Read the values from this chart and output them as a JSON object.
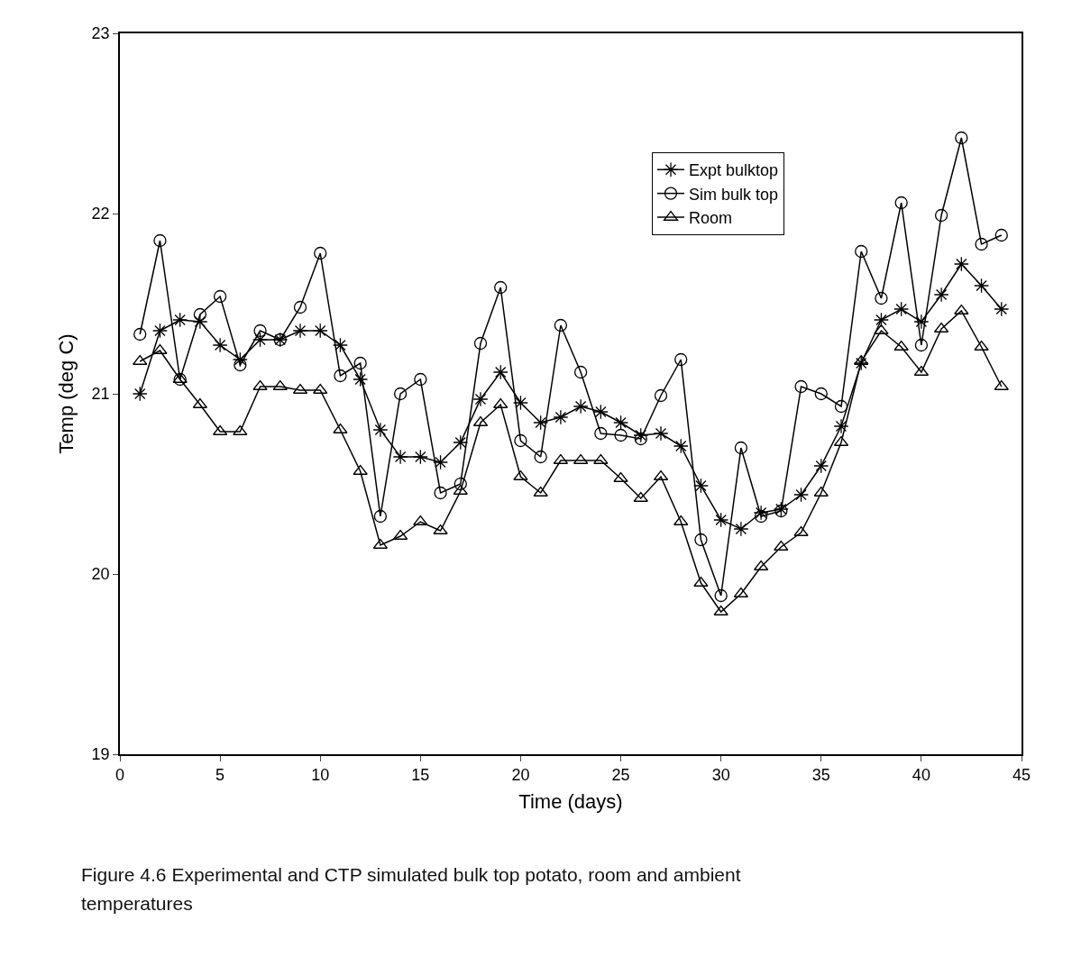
{
  "chart_data": {
    "type": "line",
    "xlabel": "Time (days)",
    "ylabel": "Temp (deg C)",
    "x": [
      1,
      2,
      3,
      4,
      5,
      6,
      7,
      8,
      9,
      10,
      11,
      12,
      13,
      14,
      15,
      16,
      17,
      18,
      19,
      20,
      21,
      22,
      23,
      24,
      25,
      26,
      27,
      28,
      29,
      30,
      31,
      32,
      33,
      34,
      35,
      36,
      37,
      38,
      39,
      40,
      41,
      42,
      43,
      44
    ],
    "series": [
      {
        "name": "Expt bulktop",
        "color": "#000000",
        "marker": "cross",
        "values": [
          21.0,
          21.35,
          21.41,
          21.4,
          21.27,
          21.19,
          21.3,
          21.3,
          21.35,
          21.35,
          21.27,
          21.08,
          20.8,
          20.65,
          20.65,
          20.62,
          20.73,
          20.97,
          21.12,
          20.95,
          20.84,
          20.87,
          20.93,
          20.9,
          20.84,
          20.77,
          20.78,
          20.71,
          20.49,
          20.3,
          20.25,
          20.34,
          20.36,
          20.44,
          20.6,
          20.82,
          21.17,
          21.41,
          21.47,
          21.4,
          21.55,
          21.72,
          21.6,
          21.47
        ]
      },
      {
        "name": "Sim bulk top",
        "color": "#000000",
        "marker": "circle",
        "values": [
          21.33,
          21.85,
          21.08,
          21.44,
          21.54,
          21.16,
          21.35,
          21.3,
          21.48,
          21.78,
          21.1,
          21.17,
          20.32,
          21.0,
          21.08,
          20.45,
          20.5,
          21.28,
          21.59,
          20.74,
          20.65,
          21.38,
          21.12,
          20.78,
          20.77,
          20.75,
          20.99,
          21.19,
          20.19,
          19.88,
          20.7,
          20.32,
          20.35,
          21.04,
          21.0,
          20.93,
          21.79,
          21.53,
          22.06,
          21.27,
          21.99,
          22.42,
          21.83,
          21.88
        ]
      },
      {
        "name": "Room",
        "color": "#000000",
        "marker": "triangle",
        "values": [
          21.18,
          21.24,
          21.08,
          20.94,
          20.79,
          20.79,
          21.04,
          21.04,
          21.02,
          21.02,
          20.8,
          20.57,
          20.16,
          20.21,
          20.29,
          20.24,
          20.46,
          20.84,
          20.94,
          20.54,
          20.45,
          20.63,
          20.63,
          20.63,
          20.53,
          20.42,
          20.54,
          20.29,
          19.95,
          19.79,
          19.89,
          20.04,
          20.15,
          20.23,
          20.45,
          20.73,
          21.18,
          21.35,
          21.26,
          21.12,
          21.36,
          21.46,
          21.26,
          21.04
        ]
      }
    ],
    "xlim": [
      0,
      45
    ],
    "xticks": [
      0,
      5,
      10,
      15,
      20,
      25,
      30,
      35,
      40,
      45
    ],
    "ylim": [
      19,
      23
    ],
    "yticks": [
      19,
      20,
      21,
      22,
      23
    ],
    "grid": false,
    "legend": "top right",
    "line_style": "solid",
    "annotations": [
      "Figure 4.6 Experimental and CTP simulated bulk top potato, room and ambient temperatures"
    ]
  }
}
